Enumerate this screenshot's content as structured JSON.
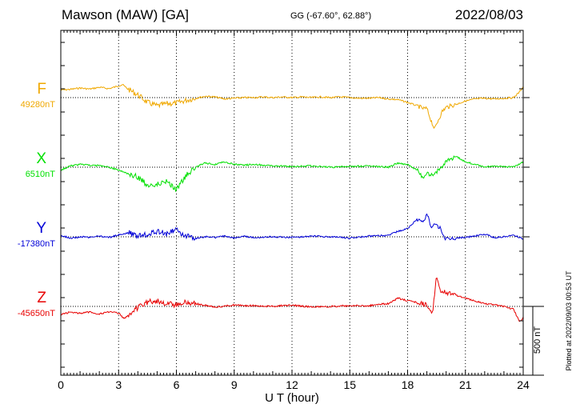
{
  "header": {
    "station": "Mawson (MAW)  [GA]",
    "coords": "GG (-67.60°,  62.88°)",
    "date": "2022/08/03"
  },
  "plotted_note": "Plotted at 2022/09/03 00:53 UT",
  "scale_label": "500 nT",
  "colors": {
    "F": "#f0a800",
    "X": "#00e000",
    "Y": "#0000d8",
    "Z": "#e80000",
    "axis": "#000000"
  },
  "chart_data": {
    "type": "line",
    "xlabel": "U T (hour)",
    "x_ticks": [
      "0",
      "3",
      "6",
      "9",
      "12",
      "15",
      "18",
      "21",
      "24"
    ],
    "xlim": [
      0,
      24
    ],
    "scale_bar_nT": 500,
    "grid": "dotted vertical every 3 h; dotted baseline per channel",
    "series": [
      {
        "name": "F",
        "baseline_label": "49280nT",
        "color": "#f0a800",
        "x": [
          0,
          0.5,
          1,
          1.5,
          2,
          2.5,
          3,
          3.2,
          3.5,
          4,
          4.5,
          5,
          5.5,
          6,
          6.5,
          7,
          7.5,
          8,
          8.5,
          9,
          9.5,
          10,
          10.5,
          11,
          11.5,
          12,
          12.5,
          13,
          13.5,
          14,
          14.5,
          15,
          15.5,
          16,
          16.5,
          17,
          17.5,
          18,
          18.5,
          18.8,
          19,
          19.2,
          19.4,
          19.6,
          19.8,
          20,
          20.5,
          21,
          21.5,
          22,
          22.5,
          23,
          23.5,
          23.8,
          24
        ],
        "y": [
          55,
          60,
          70,
          62,
          75,
          65,
          85,
          95,
          60,
          20,
          -35,
          -60,
          -45,
          -40,
          -20,
          -5,
          10,
          5,
          -10,
          -5,
          0,
          0,
          5,
          0,
          5,
          0,
          5,
          0,
          5,
          0,
          5,
          0,
          -5,
          -5,
          0,
          -10,
          -15,
          -35,
          -60,
          -80,
          -80,
          -160,
          -230,
          -160,
          -100,
          -70,
          -50,
          -25,
          -10,
          -5,
          -10,
          -5,
          0,
          40,
          80
        ]
      },
      {
        "name": "X",
        "baseline_label": "6510nT",
        "color": "#00e000",
        "x": [
          0,
          0.5,
          1,
          1.5,
          2,
          2.5,
          3,
          3.5,
          4,
          4.5,
          5,
          5.5,
          6,
          6.5,
          7,
          7.5,
          8,
          8.5,
          9,
          9.5,
          10,
          11,
          12,
          13,
          14,
          15,
          16,
          17,
          17.5,
          18,
          18.5,
          18.8,
          19,
          19.3,
          19.6,
          20,
          20.5,
          21,
          21.5,
          22,
          22.5,
          23,
          23.5,
          24
        ],
        "y": [
          -20,
          10,
          20,
          15,
          10,
          0,
          -20,
          -50,
          -70,
          -130,
          -120,
          -100,
          -160,
          -60,
          0,
          30,
          20,
          40,
          20,
          15,
          20,
          10,
          5,
          10,
          0,
          5,
          10,
          0,
          30,
          20,
          -20,
          -80,
          -40,
          -60,
          -20,
          40,
          80,
          40,
          20,
          0,
          10,
          5,
          0,
          40
        ]
      },
      {
        "name": "Y",
        "baseline_label": "-17380nT",
        "color": "#0000d8",
        "x": [
          0,
          0.5,
          1,
          1.5,
          2,
          2.5,
          3,
          3.5,
          4,
          4.5,
          5,
          5.5,
          6,
          6.5,
          7,
          7.5,
          8,
          8.5,
          9,
          9.5,
          10,
          11,
          12,
          13,
          14,
          15,
          16,
          17,
          17.5,
          18,
          18.5,
          18.8,
          19,
          19.2,
          19.5,
          19.7,
          20,
          20.5,
          21,
          21.5,
          22,
          22.5,
          23,
          23.5,
          24
        ],
        "y": [
          10,
          -10,
          0,
          -5,
          5,
          -5,
          15,
          30,
          5,
          20,
          40,
          20,
          50,
          5,
          -10,
          0,
          -5,
          5,
          -10,
          5,
          -5,
          0,
          -5,
          5,
          0,
          -10,
          5,
          10,
          40,
          60,
          130,
          100,
          170,
          80,
          90,
          60,
          -20,
          -10,
          -5,
          5,
          20,
          -5,
          0,
          10,
          -15
        ]
      },
      {
        "name": "Z",
        "baseline_label": "-45650nT",
        "color": "#e80000",
        "x": [
          0,
          0.5,
          1,
          1.5,
          2,
          2.5,
          3,
          3.3,
          3.5,
          4,
          4.5,
          5,
          5.5,
          6,
          6.5,
          7,
          8,
          9,
          10,
          11,
          12,
          13,
          14,
          15,
          16,
          16.5,
          17,
          17.5,
          18,
          18.5,
          19,
          19.3,
          19.5,
          19.7,
          20,
          20.5,
          21,
          21.5,
          22,
          22.5,
          23,
          23.5,
          23.8,
          24
        ],
        "y": [
          -60,
          -40,
          -50,
          -40,
          -55,
          -40,
          -50,
          -90,
          -60,
          -10,
          30,
          40,
          20,
          10,
          30,
          20,
          -5,
          10,
          5,
          0,
          10,
          -5,
          0,
          5,
          5,
          15,
          20,
          60,
          40,
          30,
          10,
          -50,
          230,
          120,
          100,
          80,
          60,
          40,
          20,
          10,
          0,
          -20,
          -110,
          -80
        ]
      }
    ]
  }
}
